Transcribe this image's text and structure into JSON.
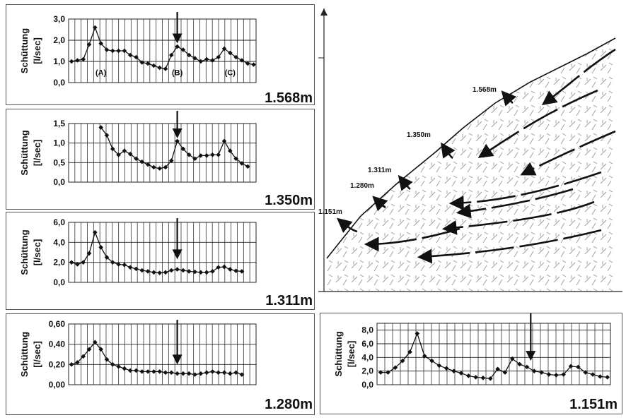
{
  "chart_data": [
    {
      "type": "line",
      "title": "1.568m",
      "ylabel": "Schüttung",
      "yunit": "[l/sec]",
      "ylim": [
        0,
        3
      ],
      "yticks": [
        "0,0",
        "1,0",
        "2,0",
        "3,0"
      ],
      "tickvals": [
        0,
        1,
        2,
        3
      ],
      "ncols": 30,
      "values": [
        1.0,
        1.05,
        1.1,
        1.8,
        2.6,
        1.85,
        1.55,
        1.5,
        1.5,
        1.5,
        1.3,
        1.2,
        0.95,
        0.9,
        0.8,
        0.7,
        0.65,
        1.3,
        1.7,
        1.55,
        1.3,
        1.15,
        1.0,
        1.1,
        1.05,
        1.2,
        1.6,
        1.4,
        1.2,
        1.05,
        0.9,
        0.85
      ],
      "start": 0,
      "arrow_at": 18,
      "annotations": [
        "(A)",
        "(B)",
        "(C)"
      ]
    },
    {
      "type": "line",
      "title": "1.350m",
      "ylabel": "Schüttung",
      "yunit": "[l/sec]",
      "ylim": [
        0,
        1.5
      ],
      "yticks": [
        "0,0",
        "0,5",
        "1,0",
        "1,5"
      ],
      "tickvals": [
        0,
        0.5,
        1,
        1.5
      ],
      "ncols": 30,
      "values": [
        1.4,
        1.2,
        0.85,
        0.7,
        0.8,
        0.72,
        0.6,
        0.52,
        0.45,
        0.38,
        0.35,
        0.38,
        0.55,
        1.05,
        0.85,
        0.7,
        0.6,
        0.68,
        0.68,
        0.7,
        0.7,
        1.05,
        0.8,
        0.6,
        0.48,
        0.4
      ],
      "start": 5,
      "arrow_at": 18,
      "annotations": []
    },
    {
      "type": "line",
      "title": "1.311m",
      "ylabel": "Schüttung",
      "yunit": "[l/sec]",
      "ylim": [
        0,
        6
      ],
      "yticks": [
        "0,0",
        "2,0",
        "4,0",
        "6,0"
      ],
      "tickvals": [
        0,
        2,
        4,
        6
      ],
      "ncols": 30,
      "values": [
        2.0,
        1.8,
        2.0,
        2.9,
        5.0,
        3.5,
        2.5,
        2.0,
        1.8,
        1.75,
        1.5,
        1.35,
        1.2,
        1.1,
        1.0,
        0.95,
        1.0,
        1.2,
        1.3,
        1.2,
        1.1,
        1.05,
        1.0,
        1.0,
        1.1,
        1.5,
        1.55,
        1.3,
        1.15,
        1.1
      ],
      "start": 0,
      "arrow_at": 18,
      "annotations": []
    },
    {
      "type": "line",
      "title": "1.280m",
      "ylabel": "Schüttung",
      "yunit": "[l/sec]",
      "ylim": [
        0,
        0.6
      ],
      "yticks": [
        "0,00",
        "0,20",
        "0,40",
        "0,60"
      ],
      "tickvals": [
        0,
        0.2,
        0.4,
        0.6
      ],
      "ncols": 30,
      "values": [
        0.2,
        0.22,
        0.28,
        0.35,
        0.42,
        0.35,
        0.25,
        0.2,
        0.18,
        0.16,
        0.14,
        0.14,
        0.13,
        0.13,
        0.13,
        0.13,
        0.12,
        0.12,
        0.11,
        0.11,
        0.11,
        0.1,
        0.11,
        0.12,
        0.13,
        0.12,
        0.12,
        0.11,
        0.12,
        0.1
      ],
      "start": 0,
      "arrow_at": 18,
      "annotations": []
    },
    {
      "type": "line",
      "title": "1.151m",
      "ylabel": "Schüttung",
      "yunit": "[l/sec]",
      "ylim": [
        0,
        9
      ],
      "yticks": [
        "0,0",
        "2,0",
        "4,0",
        "6,0",
        "8,0"
      ],
      "tickvals": [
        0,
        2,
        4,
        6,
        8
      ],
      "ncols": 30,
      "values": [
        1.8,
        1.8,
        2.5,
        3.5,
        4.8,
        7.5,
        4.2,
        3.5,
        2.8,
        2.4,
        2.0,
        1.7,
        1.3,
        1.1,
        1.0,
        0.9,
        2.3,
        1.8,
        3.8,
        3.0,
        2.6,
        2.0,
        1.8,
        1.5,
        1.4,
        1.5,
        2.7,
        2.6,
        1.8,
        1.5,
        1.2,
        1.1
      ],
      "start": 0,
      "arrow_at": 18,
      "annotations": []
    }
  ],
  "sketch": {
    "labels": [
      "1.568m",
      "1.350m",
      "1.311m",
      "1.280m",
      "1.151m"
    ]
  }
}
